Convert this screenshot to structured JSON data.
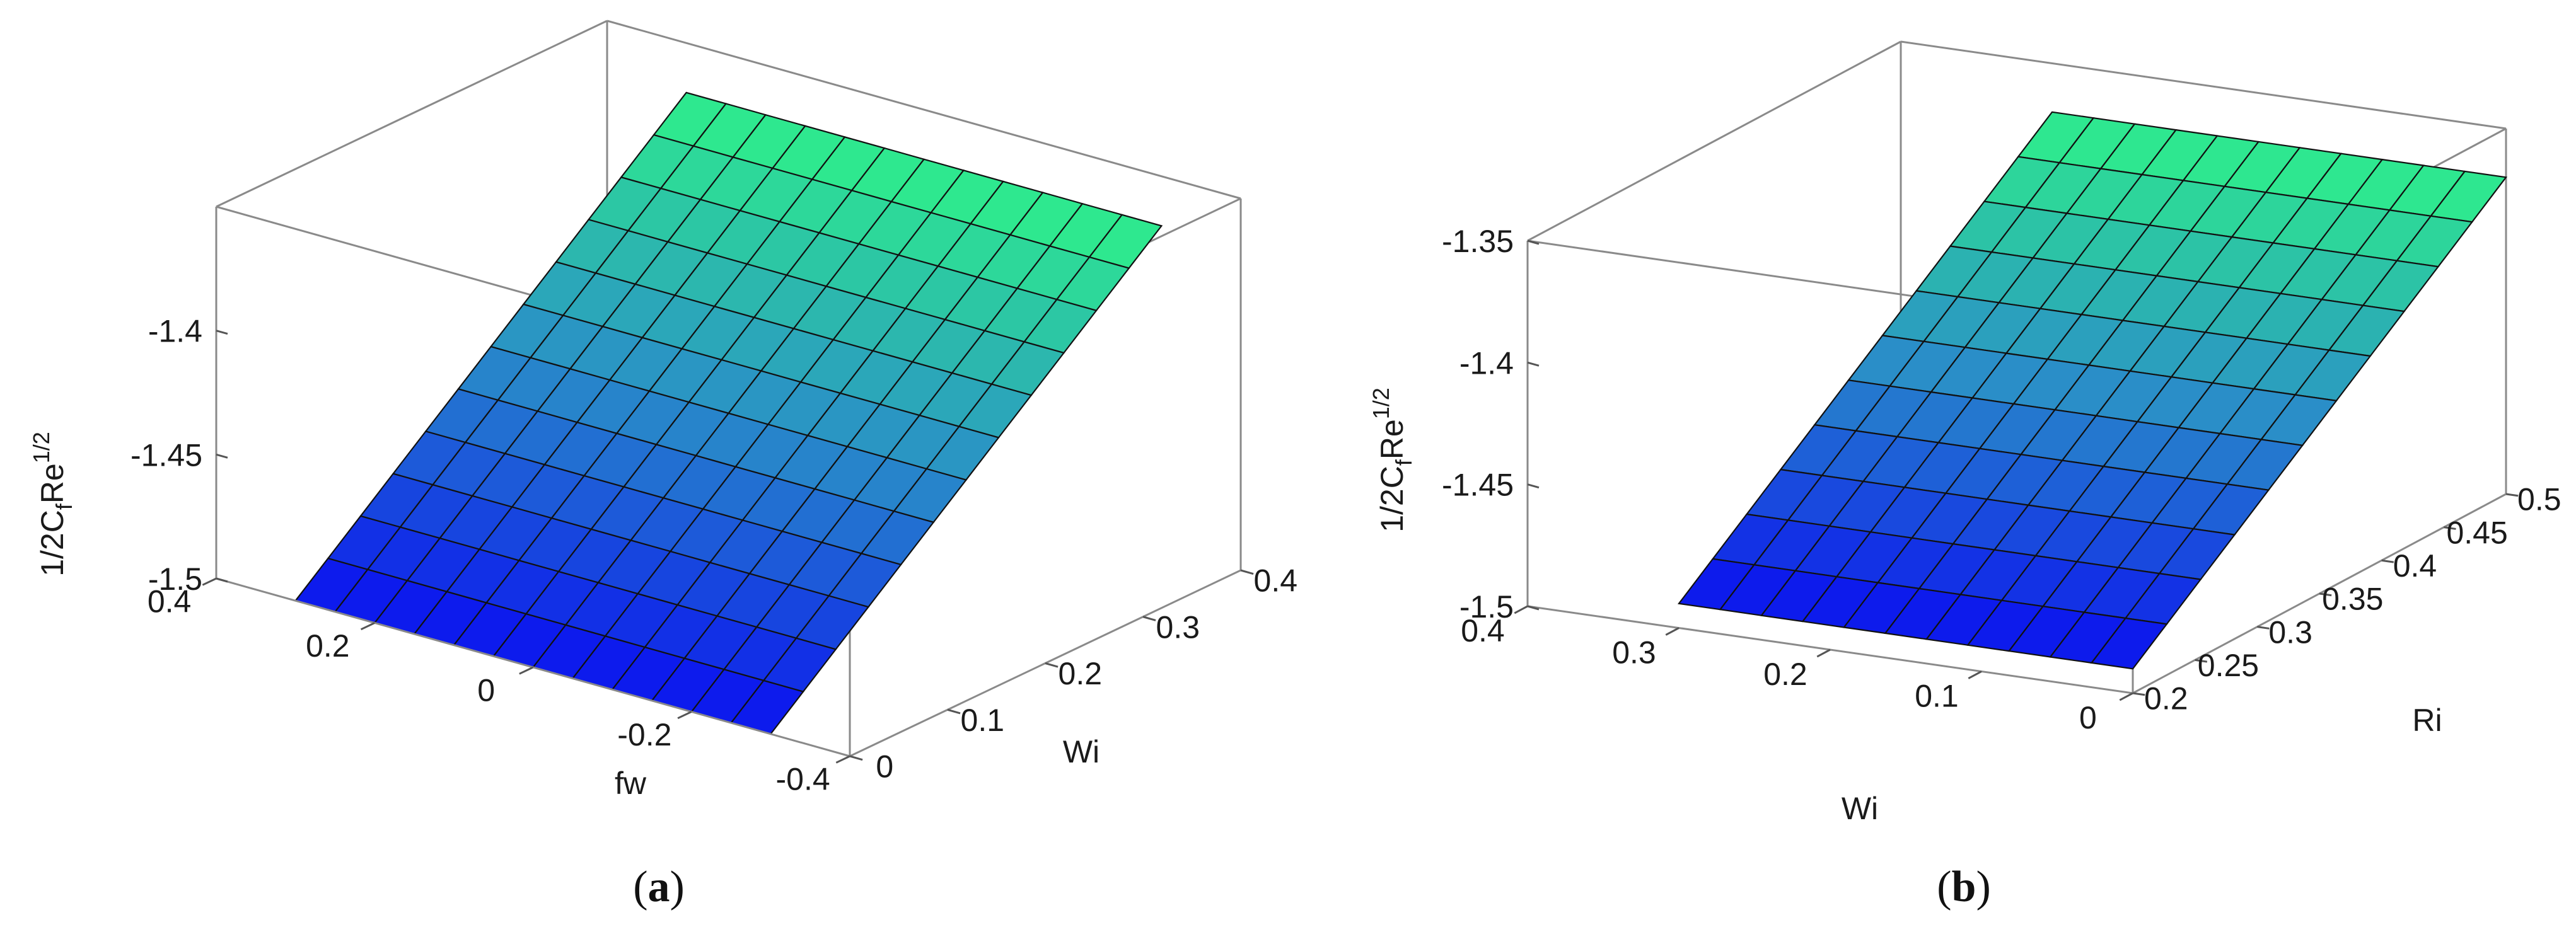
{
  "chart_data": [
    {
      "type": "surface",
      "panel_label": "a",
      "axes": {
        "x": {
          "label": "fw",
          "range": [
            -0.4,
            0.4
          ],
          "ticks": [
            "0.4",
            "0.2",
            "0",
            "-0.2",
            "-0.4"
          ]
        },
        "y": {
          "label": "Wi",
          "range": [
            0,
            0.4
          ],
          "ticks": [
            "0",
            "0.1",
            "0.2",
            "0.3",
            "0.4"
          ]
        },
        "z": {
          "label_main": "1/2C",
          "label_sub": "f",
          "label_mid": "Re",
          "label_sup": "1/2",
          "range": [
            -1.5,
            -1.35
          ],
          "ticks": [
            "-1.5",
            "-1.45",
            "-1.4"
          ]
        }
      },
      "surface": {
        "x_grid": [
          -0.3,
          0.3
        ],
        "y_grid": [
          0,
          0.4
        ],
        "z_at_y_min": -1.5,
        "z_at_y_max": -1.37,
        "grid_divisions": 12
      },
      "colormap": [
        "#0a10f0",
        "#2a8ec8",
        "#2ef08a"
      ]
    },
    {
      "type": "surface",
      "panel_label": "b",
      "axes": {
        "x": {
          "label": "Wi",
          "range": [
            0,
            0.4
          ],
          "ticks": [
            "0.4",
            "0.3",
            "0.2",
            "0.1",
            "0"
          ]
        },
        "y": {
          "label": "Ri",
          "range": [
            0.2,
            0.5
          ],
          "ticks": [
            "0.2",
            "0.25",
            "0.3",
            "0.35",
            "0.4",
            "0.45",
            "0.5"
          ]
        },
        "z": {
          "label_main": "1/2C",
          "label_sub": "f",
          "label_mid": "Re",
          "label_sup": "1/2",
          "range": [
            -1.5,
            -1.35
          ],
          "ticks": [
            "-1.5",
            "-1.45",
            "-1.4",
            "-1.35"
          ]
        }
      },
      "surface": {
        "x_grid": [
          0,
          0.3
        ],
        "y_grid": [
          0.2,
          0.5
        ],
        "z_at_y_min": -1.49,
        "z_at_y_max": -1.37,
        "grid_divisions": 11
      },
      "colormap": [
        "#0a10f0",
        "#2a8ec8",
        "#2ef08a"
      ]
    }
  ]
}
